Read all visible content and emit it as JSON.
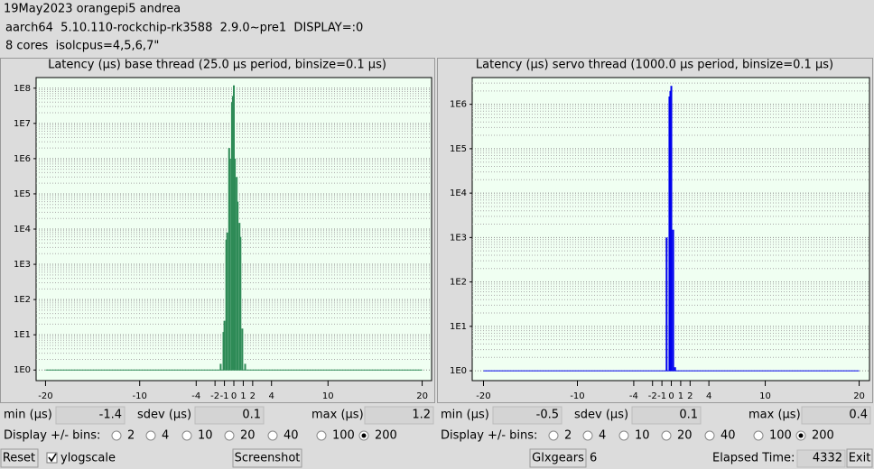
{
  "header": [
    "19May2023 orangepi5 andrea",
    "aarch64  5.10.110-rockchip-rk3588  2.9.0~pre1  DISPLAY=:0",
    "8 cores  isolcpus=4,5,6,7\""
  ],
  "panels": [
    {
      "title": "Latency (µs) base thread (25.0 µs period, binsize=0.1 µs)",
      "chart": {
        "type": "bar",
        "log_scale": true,
        "grid": true,
        "color": "#2e8b57",
        "x": [
          -1.4,
          -1.1,
          -1.0,
          -0.8,
          -0.7,
          -0.5,
          -0.4,
          -0.2,
          -0.1,
          0.0,
          0.1,
          0.3,
          0.4,
          0.6,
          0.7,
          0.9,
          1.2
        ],
        "values": [
          1.5,
          12,
          25,
          5000,
          8000,
          2000000,
          1000000,
          40000000,
          60000000,
          120000000,
          1000000,
          300000,
          60000,
          15000,
          6000,
          15,
          1.5
        ],
        "xlim": [
          -21,
          21
        ],
        "xticks": [
          -20,
          -10,
          -4,
          -2,
          -1,
          0,
          1,
          2,
          4,
          10,
          20
        ],
        "ylim": [
          0.5,
          200000000
        ],
        "yticks": [
          {
            "value": 1,
            "label": "1E0"
          },
          {
            "value": 10,
            "label": "1E1"
          },
          {
            "value": 100,
            "label": "1E2"
          },
          {
            "value": 1000,
            "label": "1E3"
          },
          {
            "value": 10000,
            "label": "1E4"
          },
          {
            "value": 100000,
            "label": "1E5"
          },
          {
            "value": 1000000,
            "label": "1E6"
          },
          {
            "value": 10000000,
            "label": "1E7"
          },
          {
            "value": 100000000,
            "label": "1E8"
          }
        ]
      },
      "stats": [
        {
          "label": "min (µs)",
          "value": -1.4
        },
        {
          "label": "sdev (µs)",
          "value": 0.1
        },
        {
          "label": "max (µs)",
          "value": 1.2
        }
      ],
      "bins_label": "Display +/- bins:",
      "bins_options": [
        2,
        4,
        10,
        20,
        40,
        100,
        200
      ],
      "bins_selected": 200
    },
    {
      "title": "Latency (µs) servo thread (1000.0 µs period, binsize=0.1 µs)",
      "chart": {
        "type": "bar",
        "log_scale": true,
        "grid": true,
        "color": "#0000ee",
        "x": [
          -0.5,
          -0.2,
          -0.1,
          0.0,
          0.2,
          0.4
        ],
        "values": [
          1000,
          1500000,
          2000000,
          2600000,
          1500,
          1.2
        ],
        "xlim": [
          -21.2,
          21.1
        ],
        "xticks": [
          -20,
          -10,
          -4,
          -2,
          -1,
          0,
          1,
          2,
          4,
          10,
          20
        ],
        "ylim": [
          0.6,
          4000000
        ],
        "yticks": [
          {
            "value": 1,
            "label": "1E0"
          },
          {
            "value": 10,
            "label": "1E1"
          },
          {
            "value": 100,
            "label": "1E2"
          },
          {
            "value": 1000,
            "label": "1E3"
          },
          {
            "value": 10000,
            "label": "1E4"
          },
          {
            "value": 100000,
            "label": "1E5"
          },
          {
            "value": 1000000,
            "label": "1E6"
          }
        ]
      },
      "stats": [
        {
          "label": "min (µs)",
          "value": -0.5
        },
        {
          "label": "sdev (µs)",
          "value": 0.1
        },
        {
          "label": "max (µs)",
          "value": 0.4
        }
      ],
      "bins_label": "Display +/- bins:",
      "bins_options": [
        2,
        4,
        10,
        20,
        40,
        100,
        200
      ],
      "bins_selected": 200
    }
  ],
  "controls": {
    "reset": "Reset",
    "ylogscale": "ylogscale",
    "ylogscale_checked": true,
    "screenshot": "Screenshot",
    "glxgears": "Glxgears",
    "glxgears_count": 6,
    "elapsed_label": "Elapsed Time:",
    "elapsed_value": 4332,
    "exit": "Exit"
  }
}
